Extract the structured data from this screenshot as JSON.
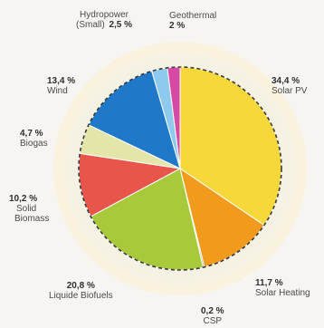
{
  "chart_data": {
    "type": "pie",
    "slices": [
      {
        "label": "Solar PV",
        "pct_label": "34,4 %",
        "value": 34.4,
        "color": "#f7d83a"
      },
      {
        "label": "Solar Heating",
        "pct_label": "11,7 %",
        "value": 11.7,
        "color": "#f19a1c"
      },
      {
        "label": "CSP",
        "pct_label": "0,2 %",
        "value": 0.2,
        "color": "#7a3b2e"
      },
      {
        "label": "Liquide Biofuels",
        "pct_label": "20,8 %",
        "value": 20.8,
        "color": "#a8c93a"
      },
      {
        "label": "Solid Biomass",
        "pct_label": "10,2 %",
        "value": 10.2,
        "color": "#e8554a"
      },
      {
        "label": "Biogas",
        "pct_label": "4,7 %",
        "value": 4.7,
        "color": "#e3e6a8"
      },
      {
        "label": "Wind",
        "pct_label": "13,4 %",
        "value": 13.4,
        "color": "#1f78c8"
      },
      {
        "label": "Hydropower (Small)",
        "pct_label": "2,5 %",
        "value": 2.5,
        "color": "#8ec9ee"
      },
      {
        "label": "Geothermal",
        "pct_label": "2 %",
        "value": 2.0,
        "color": "#d64aa5"
      }
    ]
  },
  "labels": {
    "solar_pv": {
      "pct": "34,4 %",
      "name": "Solar PV"
    },
    "solar_heating": {
      "pct": "11,7 %",
      "name": "Solar Heating"
    },
    "csp": {
      "pct": "0,2 %",
      "name": "CSP"
    },
    "liquide_biofuels": {
      "pct": "20,8 %",
      "name": "Liquide Biofuels"
    },
    "solid_biomass": {
      "pct": "10,2 %",
      "name1": "Solid",
      "name2": "Biomass"
    },
    "biogas": {
      "pct": "4,7 %",
      "name": "Biogas"
    },
    "wind": {
      "pct": "13,4 %",
      "name": "Wind"
    },
    "hydropower": {
      "name1": "Hydropower",
      "name2": "(Small)",
      "pct": "2,5 %"
    },
    "geothermal": {
      "name": "Geothermal",
      "pct": "2 %"
    }
  }
}
